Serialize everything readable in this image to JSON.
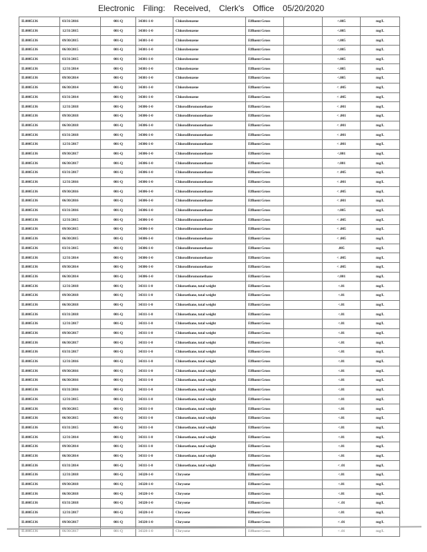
{
  "stamp": "Electronic Filing: Received, Clerk's Office 05/20/2020",
  "table": {
    "rows": [
      [
        "IL0005136",
        "03/31/2016",
        "001-Q",
        "34301-1-0",
        "Chlorobenzene",
        "Effluent Gross",
        "",
        "<.005",
        "mg/L"
      ],
      [
        "IL0005136",
        "12/31/2015",
        "001-Q",
        "34301-1-0",
        "Chlorobenzene",
        "Effluent Gross",
        "",
        "<.005",
        "mg/L"
      ],
      [
        "IL0005136",
        "09/30/2015",
        "001-Q",
        "34301-1-0",
        "Chlorobenzene",
        "Effluent Gross",
        "",
        "<.005",
        "mg/L"
      ],
      [
        "IL0005136",
        "06/30/2015",
        "001-Q",
        "34301-1-0",
        "Chlorobenzene",
        "Effluent Gross",
        "",
        "<.005",
        "mg/L"
      ],
      [
        "IL0005136",
        "03/31/2015",
        "001-Q",
        "34301-1-0",
        "Chlorobenzene",
        "Effluent Gross",
        "",
        "<.005",
        "mg/L"
      ],
      [
        "IL0005136",
        "12/31/2014",
        "001-Q",
        "34301-1-0",
        "Chlorobenzene",
        "Effluent Gross",
        "",
        "<.005",
        "mg/L"
      ],
      [
        "IL0005136",
        "09/30/2014",
        "001-Q",
        "34301-1-0",
        "Chlorobenzene",
        "Effluent Gross",
        "",
        "<.005",
        "mg/L"
      ],
      [
        "IL0005136",
        "06/30/2014",
        "001-Q",
        "34301-1-0",
        "Chlorobenzene",
        "Effluent Gross",
        "",
        "< .005",
        "mg/L"
      ],
      [
        "IL0005136",
        "03/31/2014",
        "001-Q",
        "34301-1-0",
        "Chlorobenzene",
        "Effluent Gross",
        "",
        "< .005",
        "mg/L"
      ],
      [
        "IL0005136",
        "12/31/2018",
        "001-Q",
        "34306-1-0",
        "Chlorodibromomethane",
        "Effluent Gross",
        "",
        "< .001",
        "mg/L"
      ],
      [
        "IL0005136",
        "09/30/2018",
        "001-Q",
        "34306-1-0",
        "Chlorodibromomethane",
        "Effluent Gross",
        "",
        "< .001",
        "mg/L"
      ],
      [
        "IL0005136",
        "06/30/2018",
        "001-Q",
        "34306-1-0",
        "Chlorodibromomethane",
        "Effluent Gross",
        "",
        "< .001",
        "mg/L"
      ],
      [
        "IL0005136",
        "03/31/2018",
        "001-Q",
        "34306-1-0",
        "Chlorodibromomethane",
        "Effluent Gross",
        "",
        "< .001",
        "mg/L"
      ],
      [
        "IL0005136",
        "12/31/2017",
        "001-Q",
        "34306-1-0",
        "Chlorodibromomethane",
        "Effluent Gross",
        "",
        "< .001",
        "mg/L"
      ],
      [
        "IL0005136",
        "09/30/2017",
        "001-Q",
        "34306-1-0",
        "Chlorodibromomethane",
        "Effluent Gross",
        "",
        "<.001",
        "mg/L"
      ],
      [
        "IL0005136",
        "06/30/2017",
        "001-Q",
        "34306-1-0",
        "Chlorodibromomethane",
        "Effluent Gross",
        "",
        "<.001",
        "mg/L"
      ],
      [
        "IL0005136",
        "03/31/2017",
        "001-Q",
        "34306-1-0",
        "Chlorodibromomethane",
        "Effluent Gross",
        "",
        "< .005",
        "mg/L"
      ],
      [
        "IL0005136",
        "12/31/2016",
        "001-Q",
        "34306-1-0",
        "Chlorodibromomethane",
        "Effluent Gross",
        "",
        "< .001",
        "mg/L"
      ],
      [
        "IL0005136",
        "09/30/2016",
        "001-Q",
        "34306-1-0",
        "Chlorodibromomethane",
        "Effluent Gross",
        "",
        "< .005",
        "mg/L"
      ],
      [
        "IL0005136",
        "06/30/2016",
        "001-Q",
        "34306-1-0",
        "Chlorodibromomethane",
        "Effluent Gross",
        "",
        "< .001",
        "mg/L"
      ],
      [
        "IL0005136",
        "03/31/2016",
        "001-Q",
        "34306-1-0",
        "Chlorodibromomethane",
        "Effluent Gross",
        "",
        "<.005",
        "mg/L"
      ],
      [
        "IL0005136",
        "12/31/2015",
        "001-Q",
        "34306-1-0",
        "Chlorodibromomethane",
        "Effluent Gross",
        "",
        "< .005",
        "mg/L"
      ],
      [
        "IL0005136",
        "09/30/2015",
        "001-Q",
        "34306-1-0",
        "Chlorodibromomethane",
        "Effluent Gross",
        "",
        "< .005",
        "mg/L"
      ],
      [
        "IL0005136",
        "06/30/2015",
        "001-Q",
        "34306-1-0",
        "Chlorodibromomethane",
        "Effluent Gross",
        "",
        "< .005",
        "mg/L"
      ],
      [
        "IL0005136",
        "03/31/2015",
        "001-Q",
        "34306-1-0",
        "Chlorodibromomethane",
        "Effluent Gross",
        "",
        ".005",
        "mg/L"
      ],
      [
        "IL0005136",
        "12/31/2014",
        "001-Q",
        "34306-1-0",
        "Chlorodibromomethane",
        "Effluent Gross",
        "",
        "< .005",
        "mg/L"
      ],
      [
        "IL0005136",
        "09/30/2014",
        "001-Q",
        "34306-1-0",
        "Chlorodibromomethane",
        "Effluent Gross",
        "",
        "< .005",
        "mg/L"
      ],
      [
        "IL0005136",
        "06/30/2014",
        "001-Q",
        "34306-1-0",
        "Chlorodibromomethane",
        "Effluent Gross",
        "",
        "<.001",
        "mg/L"
      ],
      [
        "IL0005136",
        "12/31/2018",
        "001-Q",
        "34311-1-0",
        "Chloroethane, total weight",
        "Effluent Gross",
        "",
        "<.01",
        "mg/L"
      ],
      [
        "IL0005136",
        "09/30/2018",
        "001-Q",
        "34311-1-0",
        "Chloroethane, total weight",
        "Effluent Gross",
        "",
        "<.01",
        "mg/L"
      ],
      [
        "IL0005136",
        "06/30/2018",
        "001-Q",
        "34311-1-0",
        "Chloroethane, total weight",
        "Effluent Gross",
        "",
        "<.01",
        "mg/L"
      ],
      [
        "IL0005136",
        "03/31/2018",
        "001-Q",
        "34311-1-0",
        "Chloroethane, total weight",
        "Effluent Gross",
        "",
        "<.01",
        "mg/L"
      ],
      [
        "IL0005136",
        "12/31/2017",
        "001-Q",
        "34311-1-0",
        "Chloroethane, total weight",
        "Effluent Gross",
        "",
        "<.01",
        "mg/L"
      ],
      [
        "IL0005136",
        "09/30/2017",
        "001-Q",
        "34311-1-0",
        "Chloroethane, total weight",
        "Effluent Gross",
        "",
        "<.01",
        "mg/L"
      ],
      [
        "IL0005136",
        "06/30/2017",
        "001-Q",
        "34311-1-0",
        "Chloroethane, total weight",
        "Effluent Gross",
        "",
        "<.01",
        "mg/L"
      ],
      [
        "IL0005136",
        "03/31/2017",
        "001-Q",
        "34311-1-0",
        "Chloroethane, total weight",
        "Effluent Gross",
        "",
        "<.01",
        "mg/L"
      ],
      [
        "IL0005136",
        "12/31/2016",
        "001-Q",
        "34311-1-0",
        "Chloroethane, total weight",
        "Effluent Gross",
        "",
        "<.01",
        "mg/L"
      ],
      [
        "IL0005136",
        "09/30/2016",
        "001-Q",
        "34311-1-0",
        "Chloroethane, total weight",
        "Effluent Gross",
        "",
        "<.01",
        "mg/L"
      ],
      [
        "IL0005136",
        "06/30/2016",
        "001-Q",
        "34311-1-0",
        "Chloroethane, total weight",
        "Effluent Gross",
        "",
        "<.01",
        "mg/L"
      ],
      [
        "IL0005136",
        "03/31/2016",
        "001-Q",
        "34311-1-0",
        "Chloroethane, total weight",
        "Effluent Gross",
        "",
        "<.01",
        "mg/L"
      ],
      [
        "IL0005136",
        "12/31/2015",
        "001-Q",
        "34311-1-0",
        "Chloroethane, total weight",
        "Effluent Gross",
        "",
        "<.01",
        "mg/L"
      ],
      [
        "IL0005136",
        "09/30/2015",
        "001-Q",
        "34311-1-0",
        "Chloroethane, total weight",
        "Effluent Gross",
        "",
        "<.01",
        "mg/L"
      ],
      [
        "IL0005136",
        "06/30/2015",
        "001-Q",
        "34311-1-0",
        "Chloroethane, total weight",
        "Effluent Gross",
        "",
        "<.01",
        "mg/L"
      ],
      [
        "IL0005136",
        "03/31/2015",
        "001-Q",
        "34311-1-0",
        "Chloroethane, total weight",
        "Effluent Gross",
        "",
        "<.01",
        "mg/L"
      ],
      [
        "IL0005136",
        "12/31/2014",
        "001-Q",
        "34311-1-0",
        "Chloroethane, total weight",
        "Effluent Gross",
        "",
        "<.01",
        "mg/L"
      ],
      [
        "IL0005136",
        "09/30/2014",
        "001-Q",
        "34311-1-0",
        "Chloroethane, total weight",
        "Effluent Gross",
        "",
        "<.01",
        "mg/L"
      ],
      [
        "IL0005136",
        "06/30/2014",
        "001-Q",
        "34311-1-0",
        "Chloroethane, total weight",
        "Effluent Gross",
        "",
        "<.01",
        "mg/L"
      ],
      [
        "IL0005136",
        "03/31/2014",
        "001-Q",
        "34311-1-0",
        "Chloroethane, total weight",
        "Effluent Gross",
        "",
        "< .01",
        "mg/L"
      ],
      [
        "IL0005136",
        "12/31/2018",
        "001-Q",
        "34320-1-0",
        "Chrysene",
        "Effluent Gross",
        "",
        "<.01",
        "mg/L"
      ],
      [
        "IL0005136",
        "09/30/2018",
        "001-Q",
        "34320-1-0",
        "Chrysene",
        "Effluent Gross",
        "",
        "<.01",
        "mg/L"
      ],
      [
        "IL0005136",
        "06/30/2018",
        "001-Q",
        "34320-1-0",
        "Chrysene",
        "Effluent Gross",
        "",
        "<.01",
        "mg/L"
      ],
      [
        "IL0005136",
        "03/31/2018",
        "001-Q",
        "34320-1-0",
        "Chrysene",
        "Effluent Gross",
        "",
        "< .01",
        "mg/L"
      ],
      [
        "IL0005136",
        "12/31/2017",
        "001-Q",
        "34320-1-0",
        "Chrysene",
        "Effluent Gross",
        "",
        "<.01",
        "mg/L"
      ],
      [
        "IL0005136",
        "09/30/2017",
        "001-Q",
        "34320-1-0",
        "Chrysene",
        "Effluent Gross",
        "",
        "< .01",
        "mg/L"
      ],
      [
        "IL0005136",
        "06/30/2017",
        "001-Q",
        "34320-1-0",
        "Chrysene",
        "Effluent Gross",
        "",
        "< .01",
        "mg/L"
      ]
    ]
  }
}
